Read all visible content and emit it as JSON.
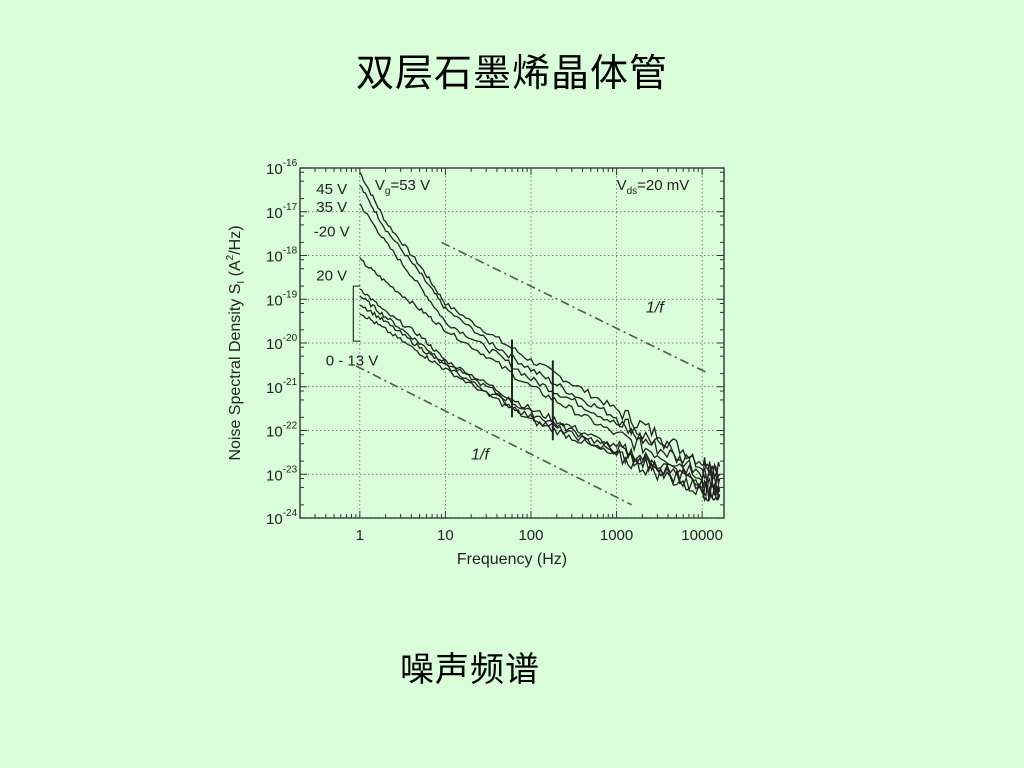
{
  "slide": {
    "title": "双层石墨烯晶体管",
    "caption": "噪声频谱"
  },
  "colors": {
    "background": "#d8fdd8",
    "curve": "#222222",
    "reference": "#555555"
  },
  "chart_data": {
    "type": "line",
    "x_scale": "log",
    "y_scale": "log",
    "xlabel": "Frequency (Hz)",
    "ylabel": "Noise Spectral Density S",
    "ylabel_sub": "I",
    "ylabel_unit": "(A",
    "ylabel_unit_sup": "2",
    "ylabel_unit_end": "/Hz)",
    "xlim": [
      0.2,
      18000
    ],
    "ylim": [
      1e-24,
      1e-16
    ],
    "grid": true,
    "x_ticks": [
      {
        "value": 1,
        "label": "1"
      },
      {
        "value": 10,
        "label": "10"
      },
      {
        "value": 100,
        "label": "100"
      },
      {
        "value": 1000,
        "label": "1000"
      },
      {
        "value": 10000,
        "label": "10000"
      }
    ],
    "y_ticks": [
      {
        "exp": -16,
        "base": "10",
        "sup": "-16"
      },
      {
        "exp": -17,
        "base": "10",
        "sup": "-17"
      },
      {
        "exp": -18,
        "base": "10",
        "sup": "-18"
      },
      {
        "exp": -19,
        "base": "10",
        "sup": "-19"
      },
      {
        "exp": -20,
        "base": "10",
        "sup": "-20"
      },
      {
        "exp": -21,
        "base": "10",
        "sup": "-21"
      },
      {
        "exp": -22,
        "base": "10",
        "sup": "-22"
      },
      {
        "exp": -23,
        "base": "10",
        "sup": "-23"
      },
      {
        "exp": -24,
        "base": "10",
        "sup": "-24"
      }
    ],
    "annotations": {
      "vg": {
        "main": "V",
        "sub": "g",
        "rest": "=53 V"
      },
      "vds": {
        "main": "V",
        "sub": "ds",
        "rest": "=20 mV"
      },
      "curve_labels": [
        "45 V",
        "35 V",
        "-20 V",
        "20 V",
        "0 - 13 V"
      ],
      "ref_label_upper": "1/f",
      "ref_label_lower": "1/f"
    },
    "reference_lines": [
      {
        "x": [
          9,
          12000
        ],
        "y": [
          2e-18,
          2e-21
        ]
      },
      {
        "x": [
          0.9,
          1500
        ],
        "y": [
          3e-21,
          2e-24
        ]
      }
    ],
    "series": [
      {
        "x": [
          1,
          2,
          5,
          10,
          30,
          100,
          300,
          1000,
          3000,
          10000,
          16000
        ],
        "y": [
          8e-17,
          6e-18,
          6e-19,
          8e-20,
          1.8e-20,
          4e-21,
          1.2e-21,
          3e-22,
          8e-23,
          2e-23,
          1.5e-23
        ]
      },
      {
        "x": [
          1,
          2,
          5,
          10,
          30,
          100,
          300,
          1000,
          3000,
          10000,
          16000
        ],
        "y": [
          4e-17,
          4e-18,
          4e-19,
          6e-20,
          1.2e-20,
          2.5e-21,
          7e-22,
          2e-22,
          5e-23,
          1.5e-23,
          1e-23
        ]
      },
      {
        "x": [
          1,
          2,
          5,
          10,
          30,
          100,
          300,
          1000,
          3000,
          10000,
          16000
        ],
        "y": [
          1.5e-17,
          2e-18,
          2e-19,
          3e-20,
          8e-21,
          1.5e-21,
          5e-22,
          1.4e-22,
          4e-23,
          1.2e-23,
          8e-24
        ]
      },
      {
        "x": [
          1,
          2,
          5,
          10,
          30,
          100,
          300,
          1000,
          3000,
          10000,
          16000
        ],
        "y": [
          8e-19,
          2.5e-19,
          6e-20,
          2e-20,
          5e-21,
          1e-21,
          3e-22,
          8e-23,
          3e-23,
          1e-23,
          7e-24
        ]
      },
      {
        "x": [
          1,
          2,
          5,
          10,
          30,
          100,
          300,
          1000,
          3000,
          10000,
          16000
        ],
        "y": [
          1.8e-19,
          5e-20,
          1.5e-20,
          4e-21,
          1.2e-21,
          3e-22,
          1.2e-22,
          4e-23,
          1.8e-23,
          6e-24,
          5e-24
        ]
      },
      {
        "x": [
          1,
          2,
          5,
          10,
          30,
          100,
          300,
          1000,
          3000,
          10000,
          16000
        ],
        "y": [
          1.2e-19,
          4e-20,
          1e-20,
          3.5e-21,
          1e-21,
          2.5e-22,
          1e-22,
          3.5e-23,
          1.5e-23,
          5e-24,
          4e-24
        ]
      },
      {
        "x": [
          1,
          2,
          5,
          10,
          30,
          100,
          300,
          1000,
          3000,
          10000,
          16000
        ],
        "y": [
          8e-20,
          3e-20,
          8e-21,
          3e-21,
          8e-22,
          2e-22,
          8e-23,
          3e-23,
          1.3e-23,
          4.5e-24,
          3.5e-24
        ]
      },
      {
        "x": [
          1,
          2,
          5,
          10,
          30,
          100,
          300,
          1000,
          3000,
          10000,
          16000
        ],
        "y": [
          5e-20,
          2e-20,
          6e-21,
          2.5e-21,
          7e-22,
          1.7e-22,
          7e-23,
          2.5e-23,
          1.1e-23,
          4e-24,
          3e-24
        ]
      }
    ]
  }
}
